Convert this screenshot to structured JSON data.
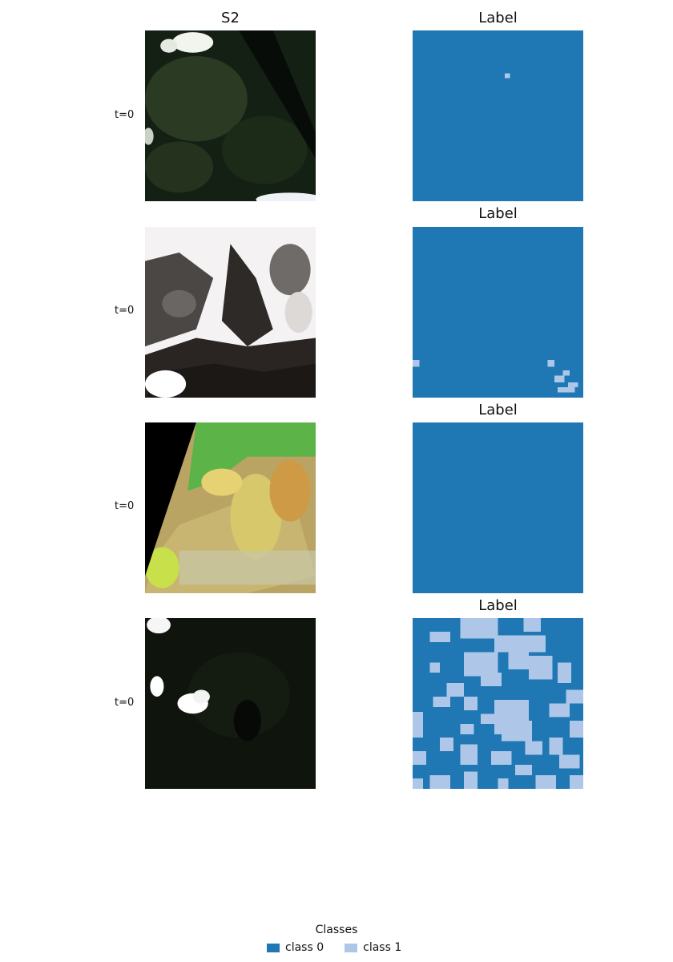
{
  "columns": {
    "s2_title": "S2",
    "label_title": "Label"
  },
  "rows": [
    {
      "time_label": "t=0",
      "label_title": "Label"
    },
    {
      "time_label": "t=0",
      "label_title": "Label"
    },
    {
      "time_label": "t=0",
      "label_title": "Label"
    },
    {
      "time_label": "t=0",
      "label_title": "Label"
    }
  ],
  "legend": {
    "title": "Classes",
    "items": [
      {
        "name": "class 0",
        "color": "#1f77b4"
      },
      {
        "name": "class 1",
        "color": "#aec7e8"
      }
    ]
  }
}
